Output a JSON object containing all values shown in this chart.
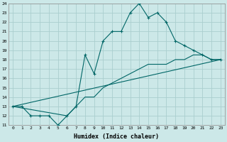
{
  "xlabel": "Humidex (Indice chaleur)",
  "bg_color": "#cce8e8",
  "grid_color": "#aacece",
  "line_color": "#006666",
  "xlim": [
    -0.5,
    23.5
  ],
  "ylim": [
    11,
    24
  ],
  "xticks": [
    0,
    1,
    2,
    3,
    4,
    5,
    6,
    7,
    8,
    9,
    10,
    11,
    12,
    13,
    14,
    15,
    16,
    17,
    18,
    19,
    20,
    21,
    22,
    23
  ],
  "yticks": [
    11,
    12,
    13,
    14,
    15,
    16,
    17,
    18,
    19,
    20,
    21,
    22,
    23,
    24
  ],
  "line1_x": [
    0,
    1,
    2,
    3,
    4,
    5,
    6,
    7,
    8,
    9,
    10,
    11,
    12,
    13,
    14,
    15,
    16,
    17,
    18,
    19,
    20,
    21,
    22,
    23
  ],
  "line1_y": [
    13,
    13,
    12,
    12,
    12,
    11,
    12,
    13,
    18.5,
    16.5,
    20,
    21,
    21,
    23,
    24,
    22.5,
    23,
    22,
    20,
    19.5,
    19,
    18.5,
    18,
    18
  ],
  "line2_x": [
    0,
    23
  ],
  "line2_y": [
    13,
    18
  ],
  "line3_x": [
    0,
    6,
    7,
    8,
    9,
    10,
    11,
    12,
    13,
    14,
    15,
    16,
    17,
    18,
    19,
    20,
    21,
    22,
    23
  ],
  "line3_y": [
    13,
    12,
    13,
    14,
    14,
    15,
    15.5,
    16,
    16.5,
    17,
    17.5,
    17.5,
    17.5,
    18,
    18,
    18.5,
    18.5,
    18,
    18
  ]
}
